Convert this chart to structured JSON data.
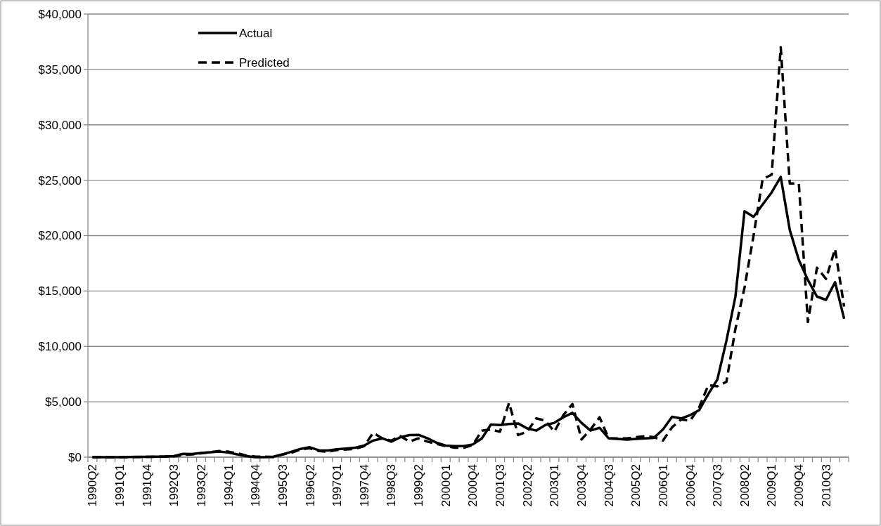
{
  "chart_data": {
    "type": "line",
    "categories": [
      "1990Q2",
      null,
      null,
      "1991Q1",
      null,
      null,
      "1991Q4",
      null,
      null,
      "1992Q3",
      null,
      null,
      "1993Q2",
      null,
      null,
      "1994Q1",
      null,
      null,
      "1994Q4",
      null,
      null,
      "1995Q3",
      null,
      null,
      "1996Q2",
      null,
      null,
      "1997Q1",
      null,
      null,
      "1997Q4",
      null,
      null,
      "1998Q3",
      null,
      null,
      "1999Q2",
      null,
      null,
      "2000Q1",
      null,
      null,
      "2000Q4",
      null,
      null,
      "2001Q3",
      null,
      null,
      "2002Q2",
      null,
      null,
      "2003Q1",
      null,
      null,
      "2003Q4",
      null,
      null,
      "2004Q3",
      null,
      null,
      "2005Q2",
      null,
      null,
      "2006Q1",
      null,
      null,
      "2006Q4",
      null,
      null,
      "2007Q3",
      null,
      null,
      "2008Q2",
      null,
      null,
      "2009Q1",
      null,
      null,
      "2009Q4",
      null,
      null,
      "2010Q3",
      null,
      null
    ],
    "series": [
      {
        "name": "Actual",
        "color": "#000000",
        "line_style": "solid",
        "values": [
          0,
          0,
          0,
          0,
          20,
          30,
          30,
          40,
          60,
          100,
          300,
          280,
          380,
          450,
          500,
          420,
          250,
          100,
          0,
          0,
          50,
          250,
          500,
          750,
          900,
          620,
          600,
          720,
          780,
          850,
          1050,
          1500,
          1700,
          1400,
          1800,
          2000,
          2020,
          1700,
          1300,
          1050,
          1000,
          1000,
          1150,
          1700,
          2950,
          2900,
          3000,
          3050,
          2600,
          2400,
          2900,
          3100,
          3600,
          4000,
          3100,
          2400,
          2650,
          1700,
          1650,
          1580,
          1650,
          1700,
          1750,
          2500,
          3650,
          3500,
          3800,
          4250,
          5700,
          7000,
          10500,
          14500,
          22200,
          21700,
          22800,
          23900,
          25300,
          20500,
          17800,
          16000,
          14500,
          14200,
          15800,
          12500
        ]
      },
      {
        "name": "Predicted",
        "color": "#000000",
        "line_style": "dashed",
        "values": [
          0,
          0,
          0,
          0,
          0,
          20,
          30,
          40,
          50,
          80,
          200,
          250,
          350,
          450,
          550,
          500,
          350,
          150,
          50,
          50,
          0,
          250,
          400,
          700,
          800,
          550,
          500,
          650,
          700,
          750,
          1000,
          2200,
          1700,
          1500,
          1900,
          1400,
          1700,
          1400,
          1200,
          1000,
          850,
          850,
          1100,
          2400,
          2500,
          2300,
          4900,
          2000,
          2300,
          3500,
          3300,
          2300,
          3800,
          4800,
          1600,
          2500,
          3600,
          1700,
          1700,
          1700,
          1800,
          1900,
          1800,
          1500,
          2700,
          3400,
          3300,
          4500,
          6500,
          6400,
          6800,
          11600,
          15300,
          20000,
          25100,
          25500,
          37000,
          24700,
          24700,
          12200,
          17100,
          16100,
          18800,
          13600
        ]
      }
    ],
    "ylim": [
      0,
      40000
    ],
    "yticks": [
      {
        "value": 0,
        "label": "$0"
      },
      {
        "value": 5000,
        "label": "$5,000"
      },
      {
        "value": 10000,
        "label": "$10,000"
      },
      {
        "value": 15000,
        "label": "$15,000"
      },
      {
        "value": 20000,
        "label": "$20,000"
      },
      {
        "value": 25000,
        "label": "$25,000"
      },
      {
        "value": 30000,
        "label": "$30,000"
      },
      {
        "value": 35000,
        "label": "$35,000"
      },
      {
        "value": 40000,
        "label": "$40,000"
      }
    ],
    "grid": "y",
    "legend": "top left",
    "marker": "none"
  }
}
